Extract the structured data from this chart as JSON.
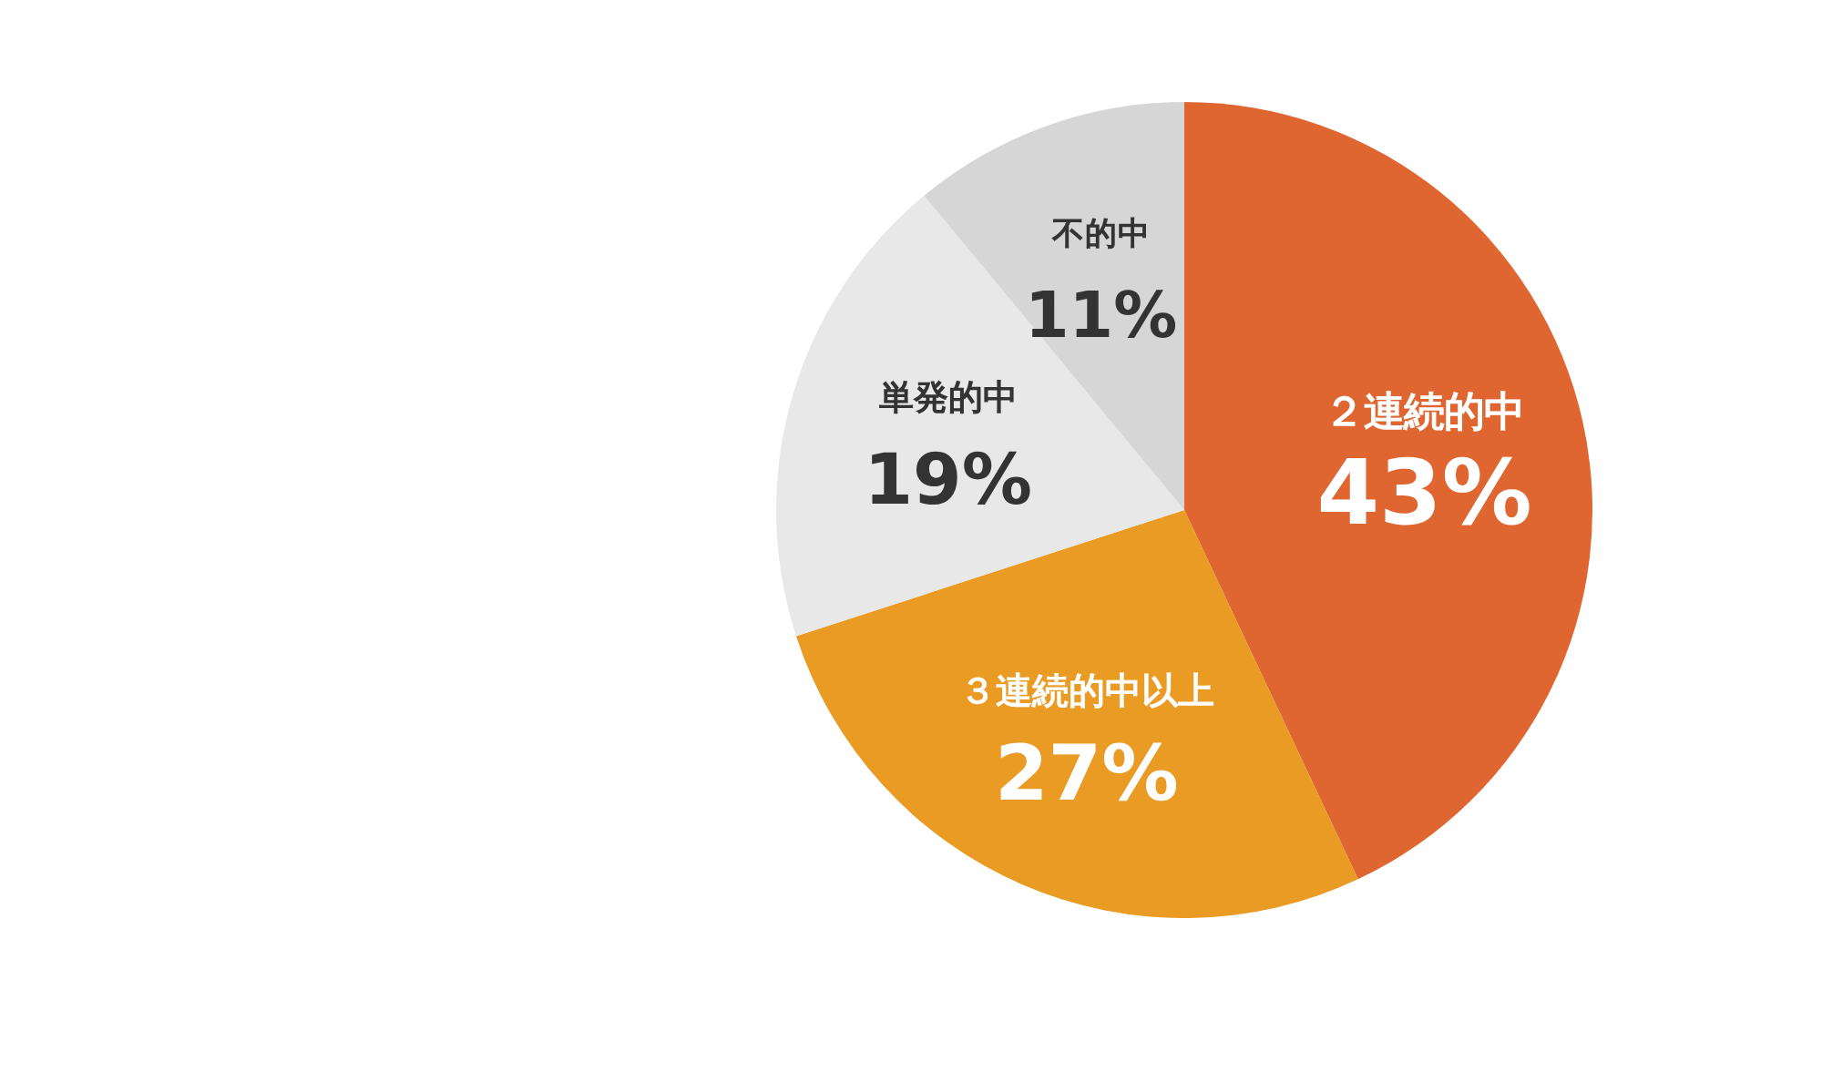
{
  "chart_data": {
    "type": "pie",
    "categories": [
      "２連続的中",
      "３連続的中以上",
      "単発的中",
      "不的中"
    ],
    "values": [
      43,
      27,
      19,
      11
    ],
    "value_labels": [
      "43%",
      "27%",
      "19%",
      "11%"
    ],
    "colors": [
      "#e06631",
      "#e99b24",
      "#e7e8e7",
      "#d6d6d6"
    ]
  }
}
